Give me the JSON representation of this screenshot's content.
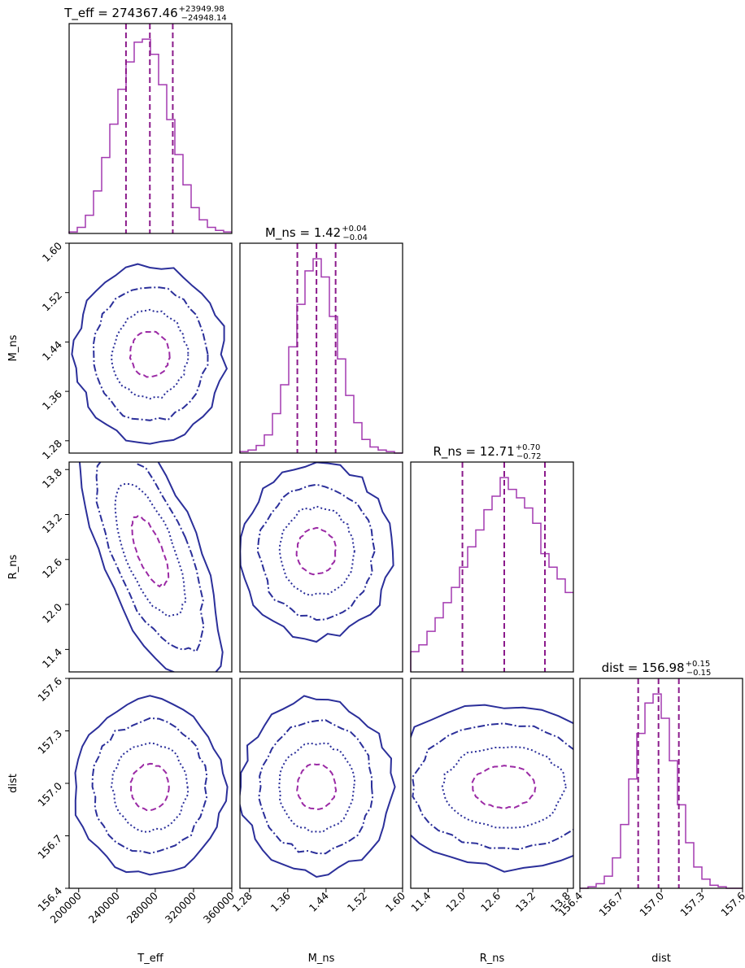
{
  "colors": {
    "hist": "#a33ab0",
    "quantile": "#8b1a8b",
    "contour_outer": "#2b2f9a",
    "contour_inner": "#9b2aa5"
  },
  "chart_data": {
    "type": "corner",
    "parameters": [
      {
        "name": "T_eff",
        "title_main": "T_eff = 274367.46",
        "title_sup": "+23949.98",
        "title_sub": "−24948.14",
        "median": 274367.46,
        "q_low": 249419.32,
        "q_high": 298317.44,
        "range": [
          190000,
          360000
        ],
        "ticks": [
          200000,
          240000,
          280000,
          320000,
          360000
        ],
        "tick_labels": [
          "200000",
          "240000",
          "280000",
          "320000",
          "360000"
        ],
        "hist_bin_edges": [
          190000,
          198500,
          207000,
          215500,
          224000,
          232500,
          241000,
          249500,
          258000,
          266500,
          275000,
          283500,
          292000,
          300500,
          309000,
          317500,
          326000,
          334500,
          343000,
          351500,
          360000
        ],
        "hist_counts": [
          1,
          4,
          12,
          28,
          50,
          72,
          95,
          113,
          126,
          128,
          118,
          98,
          75,
          52,
          32,
          17,
          9,
          4,
          2,
          1
        ]
      },
      {
        "name": "M_ns",
        "title_main": "M_ns = 1.42",
        "title_sup": "+0.04",
        "title_sub": "−0.04",
        "median": 1.42,
        "q_low": 1.38,
        "q_high": 1.46,
        "range": [
          1.26,
          1.6
        ],
        "ticks": [
          1.28,
          1.36,
          1.44,
          1.52,
          1.6
        ],
        "tick_labels": [
          "1.28",
          "1.36",
          "1.44",
          "1.52",
          "1.60"
        ],
        "hist_bin_edges": [
          1.26,
          1.277,
          1.294,
          1.311,
          1.328,
          1.345,
          1.362,
          1.379,
          1.396,
          1.413,
          1.43,
          1.447,
          1.464,
          1.481,
          1.498,
          1.515,
          1.532,
          1.549,
          1.566,
          1.583,
          1.6
        ],
        "hist_counts": [
          1,
          2,
          5,
          12,
          26,
          45,
          70,
          98,
          120,
          128,
          116,
          90,
          62,
          38,
          20,
          9,
          4,
          2,
          1,
          0
        ]
      },
      {
        "name": "R_ns",
        "title_main": "R_ns = 12.71",
        "title_sup": "+0.70",
        "title_sub": "−0.72",
        "median": 12.71,
        "q_low": 11.99,
        "q_high": 13.41,
        "range": [
          11.1,
          13.9
        ],
        "ticks": [
          11.4,
          12.0,
          12.6,
          13.2,
          13.8
        ],
        "tick_labels": [
          "11.4",
          "12.0",
          "12.6",
          "13.2",
          "13.8"
        ],
        "hist_bin_edges": [
          11.1,
          11.24,
          11.38,
          11.52,
          11.66,
          11.8,
          11.94,
          12.08,
          12.22,
          12.36,
          12.5,
          12.64,
          12.78,
          12.92,
          13.06,
          13.2,
          13.34,
          13.48,
          13.62,
          13.76,
          13.9
        ],
        "hist_counts": [
          12,
          16,
          24,
          32,
          41,
          50,
          62,
          74,
          84,
          96,
          104,
          115,
          108,
          103,
          97,
          88,
          70,
          62,
          55,
          47
        ]
      },
      {
        "name": "dist",
        "title_main": "dist = 156.98",
        "title_sup": "+0.15",
        "title_sub": "−0.15",
        "median": 156.98,
        "q_low": 156.83,
        "q_high": 157.13,
        "range": [
          156.4,
          157.6
        ],
        "ticks": [
          156.4,
          156.7,
          157.0,
          157.3,
          157.6
        ],
        "tick_labels": [
          "156.4",
          "156.7",
          "157.0",
          "157.3",
          "157.6"
        ],
        "hist_bin_edges": [
          156.4,
          156.46,
          156.52,
          156.58,
          156.64,
          156.7,
          156.76,
          156.82,
          156.88,
          156.94,
          157.0,
          157.06,
          157.12,
          157.18,
          157.24,
          157.3,
          157.36,
          157.42,
          157.48,
          157.54,
          157.6
        ],
        "hist_counts": [
          0,
          1,
          3,
          8,
          20,
          42,
          72,
          102,
          122,
          128,
          112,
          84,
          55,
          30,
          14,
          6,
          2,
          1,
          0,
          0
        ]
      }
    ],
    "contour_levels": [
      "outer-solid",
      "dash-dot",
      "dotted",
      "inner-dashed"
    ],
    "correlations": {
      "1_0": 0.0,
      "2_0": -0.75,
      "2_1": 0.0,
      "3_0": 0.0,
      "3_1": 0.0,
      "3_2": 0.0
    }
  }
}
